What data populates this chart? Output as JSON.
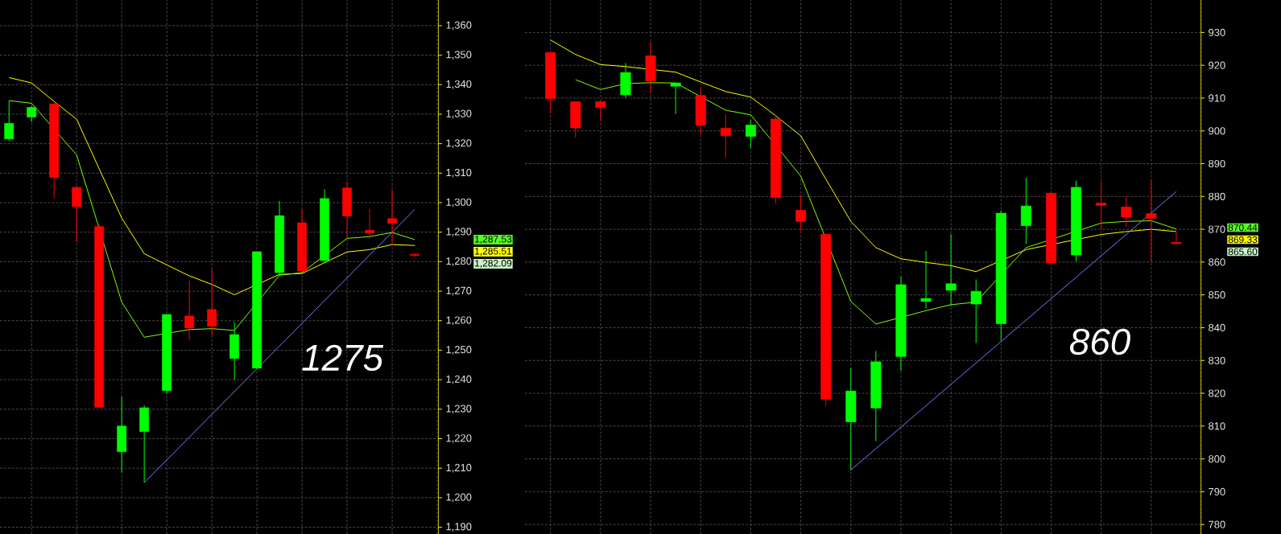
{
  "chart_data": [
    {
      "type": "candlestick",
      "categories": [
        null,
        null,
        null,
        null,
        null,
        null,
        null,
        null,
        null,
        null,
        null,
        null,
        null,
        null,
        null,
        null,
        null,
        null,
        null
      ],
      "ohlc": [
        [
          1321.6,
          1334.6,
          1320.9,
          1326.9
        ],
        [
          1329.0,
          1332.9,
          1327.4,
          1332.3
        ],
        [
          1333.5,
          1333.7,
          1301.5,
          1308.5
        ],
        [
          1305.2,
          1305.8,
          1286.6,
          1298.7
        ],
        [
          1291.9,
          1292.5,
          1230.6,
          1230.6
        ],
        [
          1215.6,
          1234.2,
          1208.6,
          1224.3
        ],
        [
          1222.4,
          1231.3,
          1205.1,
          1230.5
        ],
        [
          1236.3,
          1262.1,
          1235.1,
          1262.1
        ],
        [
          1261.6,
          1273.6,
          1253.5,
          1257.5
        ],
        [
          1263.8,
          1277.5,
          1255.0,
          1258.1
        ],
        [
          1247.2,
          1259.5,
          1240.1,
          1255.3
        ],
        [
          1243.9,
          1283.4,
          1243.9,
          1283.4
        ],
        [
          1276.3,
          1300.6,
          1275.2,
          1295.6
        ],
        [
          1293.2,
          1297.8,
          1276.3,
          1276.9
        ],
        [
          1280.4,
          1304.6,
          1279.8,
          1301.4
        ],
        [
          1305.0,
          1307.0,
          1287.9,
          1295.5
        ],
        [
          1290.6,
          1297.8,
          1287.9,
          1289.7
        ],
        [
          1294.6,
          1304.3,
          1285.6,
          1293.0
        ],
        [
          1282.5,
          1282.7,
          1281.6,
          1282.1
        ]
      ],
      "colors": [
        "#00ff00",
        "#00ff00",
        "#ff0000",
        "#ff0000",
        "#ff0000",
        "#00ff00",
        "#00ff00",
        "#00ff00",
        "#ff0000",
        "#ff0000",
        "#00ff00",
        "#00ff00",
        "#00ff00",
        "#ff0000",
        "#00ff00",
        "#ff0000",
        "#ff0000",
        "#ff0000",
        "#ff0000"
      ],
      "series": [
        {
          "type": "line",
          "color": "#ffff00",
          "values": [
            1342.4,
            1340.6,
            1334.3,
            1328.3,
            1311.5,
            1294.8,
            1282.7,
            1278.9,
            1275.2,
            1272.3,
            1268.8,
            null,
            1275.7,
            1276.0,
            null,
            1283.3,
            1284.1,
            1285.8,
            1285.5
          ]
        },
        {
          "type": "line",
          "color": "#7fff00",
          "values": [
            1334.6,
            1333.7,
            null,
            1316.2,
            null,
            1266.3,
            1254.4,
            null,
            1257.0,
            1257.3,
            1256.7,
            null,
            1275.4,
            1276.3,
            null,
            1287.9,
            1288.5,
            1289.9,
            1287.5
          ]
        },
        {
          "type": "line",
          "color": "#7878ff",
          "values": [
            null,
            null,
            null,
            null,
            null,
            null,
            1205.1,
            null,
            null,
            null,
            null,
            null,
            null,
            null,
            null,
            null,
            null,
            null,
            1297.7
          ]
        }
      ],
      "ylim": [
        1187.7,
        1368.7
      ],
      "yticks": [
        {
          "value": 1190,
          "label": "1,190"
        },
        {
          "value": 1200,
          "label": "1,200"
        },
        {
          "value": 1210,
          "label": "1,210"
        },
        {
          "value": 1220,
          "label": "1,220"
        },
        {
          "value": 1230,
          "label": "1,230"
        },
        {
          "value": 1240,
          "label": "1,240"
        },
        {
          "value": 1250,
          "label": "1,250"
        },
        {
          "value": 1260,
          "label": "1,260"
        },
        {
          "value": 1270,
          "label": "1,270"
        },
        {
          "value": 1280,
          "label": "1,280"
        },
        {
          "value": 1290,
          "label": "1,290"
        },
        {
          "value": 1300,
          "label": "1,300"
        },
        {
          "value": 1310,
          "label": "1,310"
        },
        {
          "value": 1320,
          "label": "1,320"
        },
        {
          "value": 1330,
          "label": "1,330"
        },
        {
          "value": 1340,
          "label": "1,340"
        },
        {
          "value": 1350,
          "label": "1,350"
        },
        {
          "value": 1360,
          "label": "1,360"
        }
      ],
      "grid": true,
      "tick_labels": "y",
      "annotations": [
        "1275",
        "1,287.53",
        "1,285.51",
        "1,282.09"
      ]
    },
    {
      "type": "candlestick",
      "categories": [
        null,
        null,
        null,
        null,
        null,
        null,
        null,
        null,
        null,
        null,
        null,
        null,
        null,
        null,
        null,
        null,
        null,
        null,
        null,
        null,
        null,
        null,
        null,
        null,
        null,
        null
      ],
      "ohlc": [
        [
          923.9,
          923.9,
          905.4,
          909.8
        ],
        [
          908.9,
          908.9,
          898.0,
          900.9
        ],
        [
          908.9,
          908.9,
          903.1,
          907.1
        ],
        [
          911.0,
          920.7,
          910.0,
          917.8
        ],
        [
          922.9,
          927.1,
          911.3,
          915.2
        ],
        [
          913.6,
          914.6,
          905.1,
          914.6
        ],
        [
          910.8,
          913.1,
          898.8,
          901.7
        ],
        [
          900.8,
          905.0,
          891.8,
          898.5
        ],
        [
          898.3,
          903.3,
          894.8,
          901.8
        ],
        [
          903.6,
          904.8,
          877.9,
          879.7
        ],
        [
          875.8,
          880.5,
          869.5,
          872.4
        ],
        [
          868.5,
          868.5,
          816.0,
          818.2
        ],
        [
          811.3,
          827.7,
          796.6,
          820.7
        ],
        [
          815.5,
          832.9,
          805.4,
          829.6
        ],
        [
          831.2,
          855.5,
          826.9,
          853.1
        ],
        [
          848.0,
          863.4,
          845.8,
          848.9
        ],
        [
          851.4,
          868.5,
          846.6,
          853.4
        ],
        [
          847.2,
          854.7,
          835.3,
          851.1
        ],
        [
          841.2,
          875.7,
          836.1,
          874.9
        ],
        [
          871.1,
          885.7,
          865.6,
          877.1
        ],
        [
          881.0,
          881.0,
          859.4,
          859.7
        ],
        [
          862.2,
          884.8,
          860.2,
          882.8
        ],
        [
          878.0,
          884.4,
          870.1,
          877.3
        ],
        [
          876.8,
          879.9,
          870.8,
          873.7
        ],
        [
          874.8,
          885.0,
          860.1,
          873.3
        ],
        [
          866.0,
          869.3,
          865.5,
          865.6
        ]
      ],
      "colors": [
        "#ff0000",
        "#ff0000",
        "#ff0000",
        "#00ff00",
        "#ff0000",
        "#00ff00",
        "#ff0000",
        "#ff0000",
        "#00ff00",
        "#ff0000",
        "#ff0000",
        "#ff0000",
        "#00ff00",
        "#00ff00",
        "#00ff00",
        "#00ff00",
        "#00ff00",
        "#00ff00",
        "#00ff00",
        "#00ff00",
        "#ff0000",
        "#00ff00",
        "#ff0000",
        "#ff0000",
        "#ff0000",
        "#ff0000"
      ],
      "series": [
        {
          "type": "line",
          "color": "#ffff00",
          "values": [
            927.7,
            923.3,
            920.2,
            919.6,
            null,
            917.9,
            914.9,
            912.0,
            910.3,
            904.6,
            898.5,
            885.3,
            872.4,
            864.4,
            861.0,
            859.9,
            858.9,
            857.1,
            null,
            863.8,
            null,
            null,
            868.4,
            869.3,
            870.0,
            869.3
          ]
        },
        {
          "type": "line",
          "color": "#7fff00",
          "values": [
            null,
            915.6,
            912.6,
            914.4,
            914.7,
            914.6,
            null,
            906.3,
            904.9,
            null,
            886.2,
            null,
            848.0,
            841.1,
            null,
            845.2,
            847.0,
            847.8,
            null,
            864.4,
            null,
            null,
            871.9,
            872.4,
            872.6,
            870.1
          ]
        },
        {
          "type": "line",
          "color": "#7878ff",
          "values": [
            null,
            null,
            null,
            null,
            null,
            null,
            null,
            null,
            null,
            null,
            null,
            null,
            796.6,
            null,
            null,
            null,
            null,
            null,
            null,
            null,
            null,
            null,
            null,
            null,
            null,
            881.5
          ]
        }
      ],
      "ylim": [
        777.1,
        939.9
      ],
      "yticks": [
        780,
        790,
        800,
        810,
        820,
        830,
        840,
        850,
        860,
        870,
        880,
        890,
        900,
        910,
        920,
        930
      ],
      "grid": true,
      "tick_labels": "y",
      "annotations": [
        "860",
        "870.44",
        "869.33",
        "865.60"
      ]
    }
  ]
}
